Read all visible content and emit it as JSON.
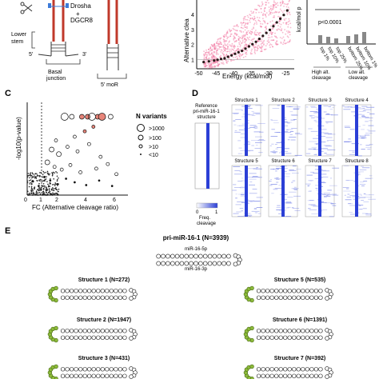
{
  "panel_letters": [
    "C",
    "D",
    "E"
  ],
  "panel_a": {
    "drosha": "Drosha",
    "plus": "+",
    "dgcr8": "DGCR8",
    "lower_stem": "Lower\nstem",
    "five_prime": "5'",
    "three_prime": "3'",
    "basal_junction": "Basal\njunction",
    "five_moR": "5' moR"
  },
  "panel_b": {
    "ylabel": "Alternative clea",
    "xlabel": "Energy (kcal/mol)",
    "x_ticks": [
      "-50",
      "-45",
      "-40",
      "-35",
      "-30",
      "-25"
    ],
    "y_ticks": [
      "1",
      "2",
      "3",
      "4"
    ],
    "bar_ylabel": "kcal/mol p",
    "p_value": "p<0.0001",
    "bar_categories": [
      "top 1%",
      "top 10%",
      "top 25%",
      "bottom 25%",
      "bottom 10%",
      "bottom 1%"
    ],
    "group_high": "High alt.\ncleavage",
    "group_low": "Low alt.\ncleavage"
  },
  "panel_c": {
    "ylabel": "-log10(p-value)",
    "xlabel": "FC (Alternative cleavage ratio)",
    "legend_title": "N variants",
    "legend_items": [
      ">1000",
      ">100",
      ">10",
      "<10"
    ]
  },
  "panel_d": {
    "reference_label": "Reference\npri-miR-16-1\nstructure",
    "structures": [
      "Structure 1",
      "Structure 2",
      "Structure 3",
      "Structure 4",
      "Structure 5",
      "Structure 6",
      "Structure 7",
      "Structure 8"
    ],
    "colorbar_ticks": [
      "0",
      "1"
    ],
    "colorbar_label": "Freq.\ncleavage",
    "accent": "#2b3fd6"
  },
  "panel_e": {
    "title": "pri-miR-16-1 (N=3939)",
    "mir5p": "miR-16-5p",
    "mir3p": "miR-16-3p",
    "structures": [
      {
        "label": "Structure 1 (N=272)"
      },
      {
        "label": "Structure 2 (N=1947)"
      },
      {
        "label": "Structure 3 (N=431)"
      },
      {
        "label": "Structure 5 (N=535)"
      },
      {
        "label": "Structure 6 (N=1391)"
      },
      {
        "label": "Structure 7 (N=392)"
      }
    ],
    "highlight_color": "#8dbb3a"
  },
  "chart_data": [
    {
      "type": "scatter",
      "xlabel": "Energy (kcal/mol)",
      "ylabel": "Alternative clea",
      "xlim": [
        -51,
        -23
      ],
      "ylim": [
        0.4,
        5
      ],
      "binned_means": [
        {
          "x": -49,
          "y": 0.85
        },
        {
          "x": -47.5,
          "y": 0.9
        },
        {
          "x": -46,
          "y": 0.95
        },
        {
          "x": -45,
          "y": 1.0
        },
        {
          "x": -44,
          "y": 1.05
        },
        {
          "x": -43,
          "y": 1.1
        },
        {
          "x": -42,
          "y": 1.2
        },
        {
          "x": -41,
          "y": 1.3
        },
        {
          "x": -40,
          "y": 1.4
        },
        {
          "x": -39,
          "y": 1.5
        },
        {
          "x": -38,
          "y": 1.6
        },
        {
          "x": -37,
          "y": 1.75
        },
        {
          "x": -36,
          "y": 1.9
        },
        {
          "x": -35,
          "y": 2.05
        },
        {
          "x": -34,
          "y": 2.2
        },
        {
          "x": -33,
          "y": 2.4
        },
        {
          "x": -32,
          "y": 2.6
        },
        {
          "x": -31,
          "y": 2.8
        },
        {
          "x": -30,
          "y": 3.0
        },
        {
          "x": -29,
          "y": 3.25
        },
        {
          "x": -28,
          "y": 3.5
        },
        {
          "x": -27,
          "y": 3.75
        },
        {
          "x": -26,
          "y": 4.0
        },
        {
          "x": -25,
          "y": 4.3
        }
      ]
    },
    {
      "type": "scatter",
      "xlabel": "FC (Alternative cleavage ratio)",
      "ylabel": "-log10(p-value)",
      "xlim": [
        0,
        7
      ],
      "ylim": [
        0,
        10
      ],
      "points": [
        {
          "x": 2.6,
          "y": 8.6,
          "size": ">1000",
          "sig": false
        },
        {
          "x": 3.1,
          "y": 8.6,
          "size": ">100",
          "sig": false
        },
        {
          "x": 3.8,
          "y": 8.6,
          "size": ">100",
          "sig": true
        },
        {
          "x": 4.2,
          "y": 8.6,
          "size": ">100",
          "sig": true
        },
        {
          "x": 4.5,
          "y": 8.6,
          "size": ">1000",
          "sig": false
        },
        {
          "x": 4.9,
          "y": 8.6,
          "size": ">100",
          "sig": true
        },
        {
          "x": 5.2,
          "y": 8.6,
          "size": ">1000",
          "sig": true
        },
        {
          "x": 5.8,
          "y": 8.6,
          "size": ">100",
          "sig": false
        },
        {
          "x": 4.0,
          "y": 7.0,
          "size": ">10",
          "sig": true
        },
        {
          "x": 4.6,
          "y": 7.5,
          "size": ">10",
          "sig": true
        },
        {
          "x": 2.0,
          "y": 6.0,
          "size": ">10",
          "sig": false
        },
        {
          "x": 3.3,
          "y": 6.4,
          "size": ">10",
          "sig": false
        },
        {
          "x": 1.7,
          "y": 5.0,
          "size": ">100",
          "sig": false
        },
        {
          "x": 2.2,
          "y": 4.5,
          "size": ">100",
          "sig": false
        },
        {
          "x": 2.8,
          "y": 5.3,
          "size": ">10",
          "sig": false
        },
        {
          "x": 3.5,
          "y": 4.8,
          "size": ">10",
          "sig": false
        },
        {
          "x": 4.3,
          "y": 5.6,
          "size": ">10",
          "sig": false
        },
        {
          "x": 5.1,
          "y": 4.2,
          "size": ">10",
          "sig": false
        },
        {
          "x": 1.4,
          "y": 3.6,
          "size": ">100",
          "sig": false
        },
        {
          "x": 1.9,
          "y": 3.1,
          "size": ">10",
          "sig": false
        },
        {
          "x": 2.4,
          "y": 2.8,
          "size": ">10",
          "sig": false
        },
        {
          "x": 3.0,
          "y": 3.3,
          "size": ">10",
          "sig": false
        },
        {
          "x": 3.7,
          "y": 2.5,
          "size": ">10",
          "sig": false
        },
        {
          "x": 4.8,
          "y": 2.9,
          "size": ">10",
          "sig": false
        },
        {
          "x": 5.6,
          "y": 3.4,
          "size": ">10",
          "sig": false
        },
        {
          "x": 6.2,
          "y": 2.3,
          "size": ">10",
          "sig": false
        },
        {
          "x": 1.2,
          "y": 2.0,
          "size": "<10",
          "sig": false
        },
        {
          "x": 1.6,
          "y": 1.6,
          "size": "<10",
          "sig": false
        },
        {
          "x": 2.1,
          "y": 1.2,
          "size": "<10",
          "sig": false
        },
        {
          "x": 2.7,
          "y": 1.8,
          "size": "<10",
          "sig": false
        },
        {
          "x": 3.3,
          "y": 1.4,
          "size": "<10",
          "sig": false
        },
        {
          "x": 4.1,
          "y": 1.1,
          "size": "<10",
          "sig": false
        },
        {
          "x": 5.0,
          "y": 1.6,
          "size": "<10",
          "sig": false
        },
        {
          "x": 5.9,
          "y": 1.0,
          "size": "<10",
          "sig": false
        },
        {
          "x": 0.4,
          "y": 1.5,
          "size": "<10",
          "sig": false
        },
        {
          "x": 0.6,
          "y": 2.2,
          "size": ">10",
          "sig": false
        },
        {
          "x": 0.8,
          "y": 1.0,
          "size": "<10",
          "sig": false
        }
      ]
    }
  ]
}
